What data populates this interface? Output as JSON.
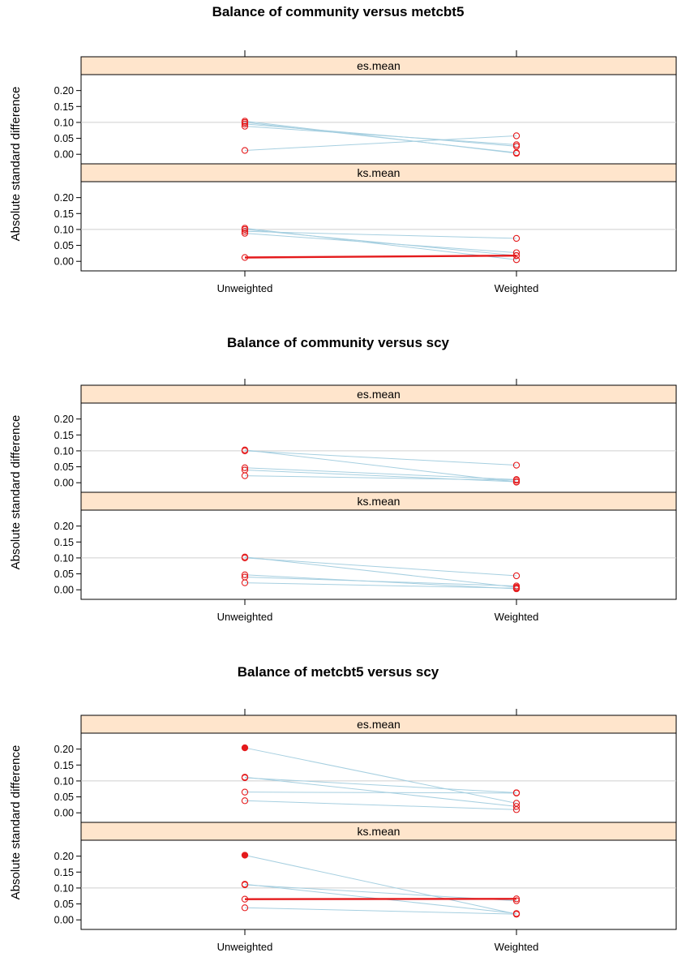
{
  "chart_data": [
    {
      "type": "line",
      "title": "Balance of community versus metcbt5",
      "ylabel": "Absolute standard difference",
      "categories": [
        "Unweighted",
        "Weighted"
      ],
      "yticks": [
        "0.00",
        "0.05",
        "0.10",
        "0.15",
        "0.20"
      ],
      "ylim": [
        -0.03,
        0.25
      ],
      "grid_y": [
        0.1
      ],
      "strip_color": "#ffe5cc",
      "line_color": "#a6cfe0",
      "point_color": "#e41a1c",
      "panels": [
        {
          "name": "es.mean",
          "series": [
            {
              "values": [
                0.012,
                0.058
              ],
              "highlight": false,
              "filled": false
            },
            {
              "values": [
                0.088,
                0.03
              ],
              "highlight": false,
              "filled": false
            },
            {
              "values": [
                0.095,
                0.025
              ],
              "highlight": false,
              "filled": false
            },
            {
              "values": [
                0.1,
                0.005
              ],
              "highlight": false,
              "filled": false
            },
            {
              "values": [
                0.104,
                0.003
              ],
              "highlight": false,
              "filled": false
            }
          ]
        },
        {
          "name": "ks.mean",
          "series": [
            {
              "values": [
                0.012,
                0.018
              ],
              "highlight": true,
              "filled": false
            },
            {
              "values": [
                0.088,
                0.027
              ],
              "highlight": false,
              "filled": false
            },
            {
              "values": [
                0.094,
                0.072
              ],
              "highlight": false,
              "filled": false
            },
            {
              "values": [
                0.1,
                0.018
              ],
              "highlight": false,
              "filled": false
            },
            {
              "values": [
                0.104,
                0.005
              ],
              "highlight": false,
              "filled": false
            }
          ]
        }
      ]
    },
    {
      "type": "line",
      "title": "Balance of community versus scy",
      "ylabel": "Absolute standard difference",
      "categories": [
        "Unweighted",
        "Weighted"
      ],
      "yticks": [
        "0.00",
        "0.05",
        "0.10",
        "0.15",
        "0.20"
      ],
      "ylim": [
        -0.03,
        0.25
      ],
      "grid_y": [
        0.1
      ],
      "strip_color": "#ffe5cc",
      "line_color": "#a6cfe0",
      "point_color": "#e41a1c",
      "panels": [
        {
          "name": "es.mean",
          "series": [
            {
              "values": [
                0.022,
                0.008
              ],
              "highlight": false,
              "filled": false
            },
            {
              "values": [
                0.04,
                0.003
              ],
              "highlight": false,
              "filled": false
            },
            {
              "values": [
                0.047,
                0.01
              ],
              "highlight": false,
              "filled": false
            },
            {
              "values": [
                0.1,
                0.055
              ],
              "highlight": false,
              "filled": false
            },
            {
              "values": [
                0.103,
                0.002
              ],
              "highlight": false,
              "filled": false
            }
          ]
        },
        {
          "name": "ks.mean",
          "series": [
            {
              "values": [
                0.022,
                0.005
              ],
              "highlight": false,
              "filled": false
            },
            {
              "values": [
                0.04,
                0.012
              ],
              "highlight": false,
              "filled": false
            },
            {
              "values": [
                0.047,
                0.003
              ],
              "highlight": false,
              "filled": false
            },
            {
              "values": [
                0.1,
                0.044
              ],
              "highlight": false,
              "filled": false
            },
            {
              "values": [
                0.103,
                0.008
              ],
              "highlight": false,
              "filled": false
            }
          ]
        }
      ]
    },
    {
      "type": "line",
      "title": "Balance of metcbt5 versus scy",
      "ylabel": "Absolute standard difference",
      "categories": [
        "Unweighted",
        "Weighted"
      ],
      "yticks": [
        "0.00",
        "0.05",
        "0.10",
        "0.15",
        "0.20"
      ],
      "ylim": [
        -0.03,
        0.25
      ],
      "grid_y": [
        0.1
      ],
      "strip_color": "#ffe5cc",
      "line_color": "#a6cfe0",
      "point_color": "#e41a1c",
      "panels": [
        {
          "name": "es.mean",
          "series": [
            {
              "values": [
                0.038,
                0.01
              ],
              "highlight": false,
              "filled": false
            },
            {
              "values": [
                0.065,
                0.062
              ],
              "highlight": false,
              "filled": false
            },
            {
              "values": [
                0.11,
                0.063
              ],
              "highlight": false,
              "filled": false
            },
            {
              "values": [
                0.112,
                0.02
              ],
              "highlight": false,
              "filled": false
            },
            {
              "values": [
                0.204,
                0.03
              ],
              "highlight": false,
              "filled": true
            }
          ]
        },
        {
          "name": "ks.mean",
          "series": [
            {
              "values": [
                0.065,
                0.066
              ],
              "highlight": true,
              "filled": false
            },
            {
              "values": [
                0.038,
                0.018
              ],
              "highlight": false,
              "filled": false
            },
            {
              "values": [
                0.11,
                0.06
              ],
              "highlight": false,
              "filled": false
            },
            {
              "values": [
                0.112,
                0.02
              ],
              "highlight": false,
              "filled": false
            },
            {
              "values": [
                0.203,
                0.018
              ],
              "highlight": false,
              "filled": true
            }
          ]
        }
      ]
    }
  ]
}
